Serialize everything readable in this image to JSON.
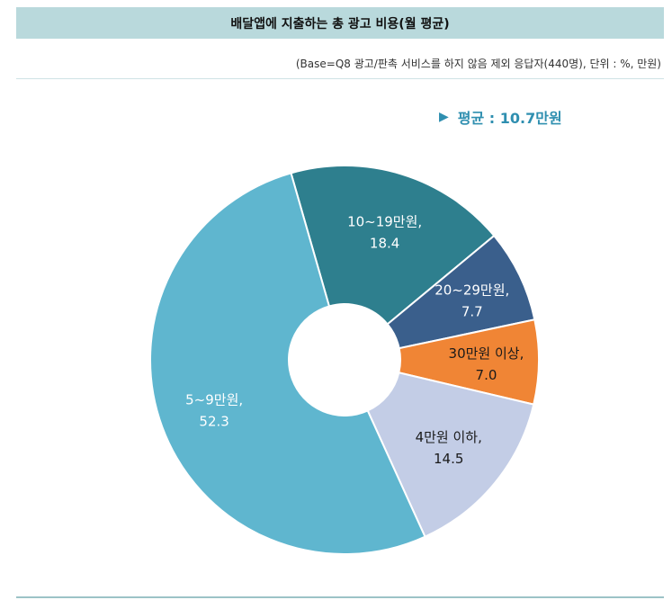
{
  "header": {
    "title": "배달앱에 지출하는 총 광고 비용(월 평균)",
    "subtitle": "(Base=Q8 광고/판촉 서비스를 하지 않음 제외 응답자(440명), 단위 : %, 만원)",
    "average": "평균 : 10.7만원"
  },
  "chart_data": {
    "type": "pie",
    "title": "배달앱에 지출하는 총 광고 비용(월 평균)",
    "unit": "%",
    "slices": [
      {
        "label": "10~19만원,",
        "value": 18.4,
        "value_label": "18.4",
        "color": "#2e7f8e",
        "text_color": "#ffffff"
      },
      {
        "label": "20~29만원,",
        "value": 7.7,
        "value_label": "7.7",
        "color": "#3a5f8c",
        "text_color": "#ffffff"
      },
      {
        "label": "30만원 이상,",
        "value": 7.0,
        "value_label": "7.0",
        "color": "#f08535",
        "text_color": "#1a1a1a"
      },
      {
        "label": "4만원 이하,",
        "value": 14.5,
        "value_label": "14.5",
        "color": "#c3cde6",
        "text_color": "#1a1a1a"
      },
      {
        "label": "5~9만원,",
        "value": 52.3,
        "value_label": "52.3",
        "color": "#5fb6cf",
        "text_color": "#ffffff"
      }
    ]
  }
}
